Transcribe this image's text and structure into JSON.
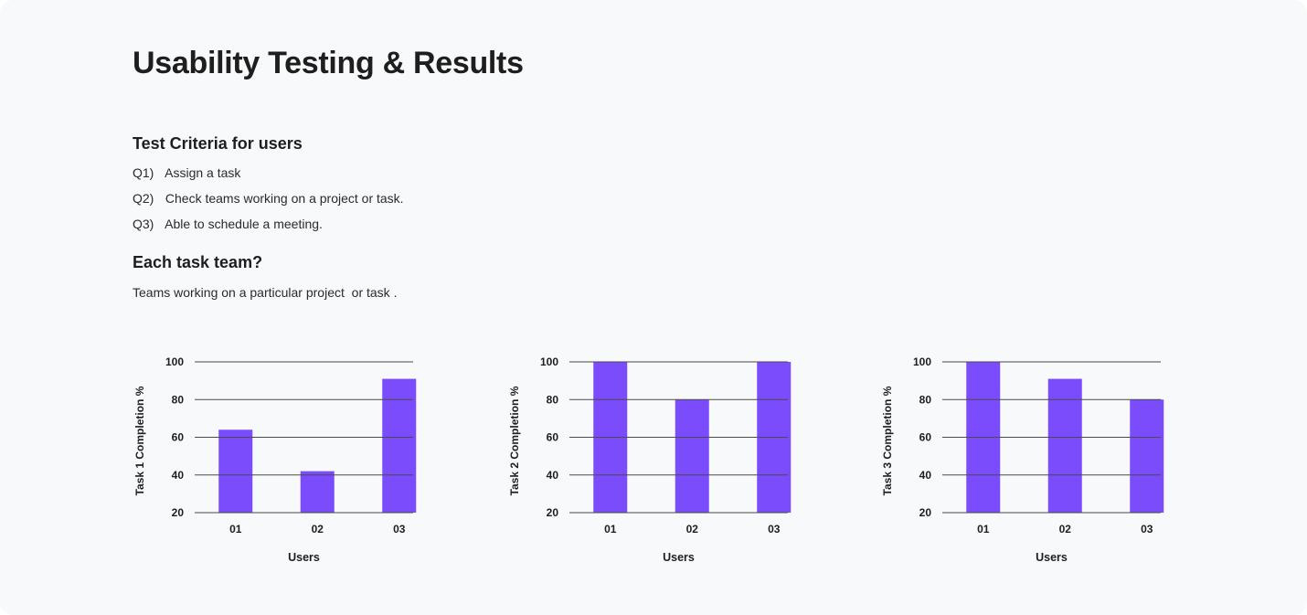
{
  "page": {
    "title": "Usability Testing & Results"
  },
  "criteria": {
    "heading": "Test Criteria for users",
    "items": [
      {
        "num": "Q1)",
        "text": "Assign a task"
      },
      {
        "num": "Q2)",
        "text": "Check teams working on a project or task."
      },
      {
        "num": "Q3)",
        "text": "Able to schedule a meeting."
      }
    ]
  },
  "team": {
    "heading": "Each task team?",
    "text": "Teams working on a particular project  or task ."
  },
  "colors": {
    "bar": "#7a4cfc",
    "gridline": "#4a4a4a"
  },
  "chart_data": [
    {
      "type": "bar",
      "title": "",
      "categories": [
        "01",
        "02",
        "03"
      ],
      "values": [
        64,
        42,
        91
      ],
      "xlabel": "Users",
      "ylabel": "Task 1 Completion %",
      "yticks": [
        20,
        40,
        60,
        80,
        100
      ],
      "ylim": [
        20,
        100
      ],
      "grid": true
    },
    {
      "type": "bar",
      "title": "",
      "categories": [
        "01",
        "02",
        "03"
      ],
      "values": [
        100,
        80,
        100
      ],
      "xlabel": "Users",
      "ylabel": "Task 2 Completion %",
      "yticks": [
        20,
        40,
        60,
        80,
        100
      ],
      "ylim": [
        20,
        100
      ],
      "grid": true
    },
    {
      "type": "bar",
      "title": "",
      "categories": [
        "01",
        "02",
        "03"
      ],
      "values": [
        100,
        91,
        80
      ],
      "xlabel": "Users",
      "ylabel": "Task 3 Completion %",
      "yticks": [
        20,
        40,
        60,
        80,
        100
      ],
      "ylim": [
        20,
        100
      ],
      "grid": true
    }
  ]
}
